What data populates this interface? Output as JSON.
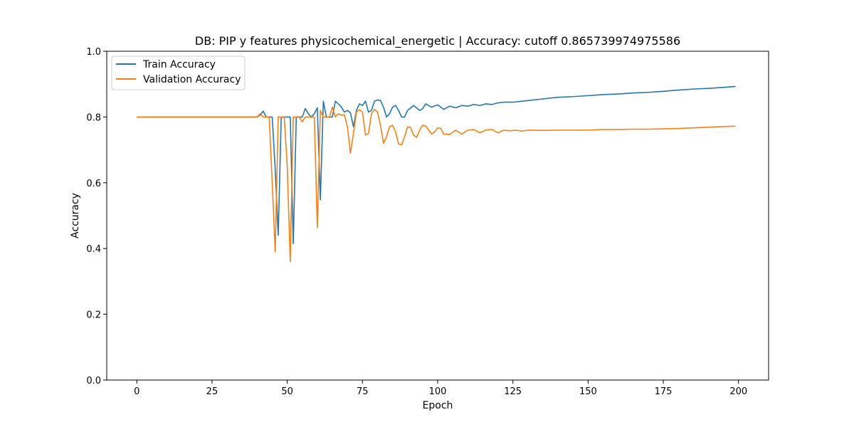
{
  "chart_data": {
    "type": "line",
    "title": "DB: PIP y features physicochemical_energetic | Accuracy: cutoff 0.865739974975586",
    "xlabel": "Epoch",
    "ylabel": "Accuracy",
    "xlim": [
      -10,
      210
    ],
    "ylim": [
      0.0,
      1.0
    ],
    "xticks": [
      0,
      25,
      50,
      75,
      100,
      125,
      150,
      175,
      200
    ],
    "yticks": [
      0.0,
      0.2,
      0.4,
      0.6,
      0.8,
      1.0
    ],
    "grid": false,
    "legend_position": "top-left",
    "series": [
      {
        "name": "Train Accuracy",
        "color": "#1f77b4",
        "x": [
          0,
          38,
          39,
          40,
          41,
          42,
          43,
          44,
          45,
          46,
          47,
          48,
          49,
          50,
          51,
          52,
          53,
          54,
          55,
          56,
          57,
          58,
          59,
          60,
          61,
          62,
          63,
          64,
          65,
          66,
          67,
          68,
          69,
          70,
          71,
          72,
          73,
          74,
          75,
          76,
          77,
          78,
          79,
          80,
          81,
          82,
          83,
          84,
          85,
          86,
          87,
          88,
          89,
          90,
          92,
          94,
          95,
          96,
          98,
          100,
          102,
          104,
          106,
          108,
          110,
          112,
          114,
          116,
          118,
          120,
          122,
          125,
          130,
          135,
          140,
          145,
          150,
          155,
          160,
          165,
          170,
          175,
          180,
          185,
          190,
          195,
          199
        ],
        "y": [
          0.8,
          0.8,
          0.8,
          0.8,
          0.806,
          0.818,
          0.8,
          0.8,
          0.8,
          0.64,
          0.44,
          0.8,
          0.8,
          0.8,
          0.8,
          0.415,
          0.8,
          0.8,
          0.8,
          0.826,
          0.81,
          0.8,
          0.81,
          0.828,
          0.548,
          0.848,
          0.8,
          0.8,
          0.8,
          0.848,
          0.84,
          0.83,
          0.815,
          0.82,
          0.813,
          0.77,
          0.82,
          0.84,
          0.835,
          0.848,
          0.815,
          0.82,
          0.848,
          0.852,
          0.85,
          0.83,
          0.8,
          0.81,
          0.83,
          0.835,
          0.82,
          0.8,
          0.8,
          0.82,
          0.835,
          0.82,
          0.825,
          0.84,
          0.83,
          0.837,
          0.823,
          0.833,
          0.828,
          0.835,
          0.833,
          0.838,
          0.835,
          0.84,
          0.838,
          0.843,
          0.845,
          0.845,
          0.85,
          0.855,
          0.86,
          0.862,
          0.865,
          0.868,
          0.87,
          0.873,
          0.875,
          0.878,
          0.882,
          0.885,
          0.887,
          0.89,
          0.893
        ]
      },
      {
        "name": "Validation Accuracy",
        "color": "#ff7f0e",
        "x": [
          0,
          38,
          39,
          40,
          41,
          42,
          43,
          44,
          45,
          46,
          47,
          48,
          49,
          50,
          51,
          52,
          53,
          54,
          55,
          56,
          57,
          58,
          59,
          60,
          61,
          62,
          63,
          64,
          65,
          66,
          67,
          68,
          69,
          70,
          71,
          72,
          73,
          74,
          75,
          76,
          77,
          78,
          79,
          80,
          81,
          82,
          83,
          84,
          85,
          86,
          87,
          88,
          89,
          90,
          91,
          92,
          93,
          94,
          95,
          96,
          97,
          98,
          99,
          100,
          101,
          102,
          104,
          106,
          108,
          110,
          112,
          114,
          116,
          118,
          120,
          122,
          124,
          126,
          128,
          130,
          135,
          140,
          145,
          150,
          155,
          160,
          165,
          170,
          175,
          180,
          185,
          190,
          195,
          199
        ],
        "y": [
          0.8,
          0.8,
          0.8,
          0.8,
          0.81,
          0.8,
          0.8,
          0.8,
          0.6,
          0.39,
          0.8,
          0.8,
          0.8,
          0.65,
          0.36,
          0.8,
          0.8,
          0.8,
          0.785,
          0.8,
          0.8,
          0.8,
          0.8,
          0.463,
          0.82,
          0.8,
          0.8,
          0.8,
          0.83,
          0.8,
          0.81,
          0.805,
          0.807,
          0.77,
          0.69,
          0.75,
          0.815,
          0.822,
          0.815,
          0.745,
          0.75,
          0.81,
          0.823,
          0.815,
          0.775,
          0.72,
          0.74,
          0.77,
          0.775,
          0.755,
          0.718,
          0.715,
          0.74,
          0.77,
          0.768,
          0.745,
          0.738,
          0.76,
          0.775,
          0.773,
          0.76,
          0.748,
          0.755,
          0.767,
          0.766,
          0.748,
          0.747,
          0.76,
          0.748,
          0.76,
          0.762,
          0.752,
          0.76,
          0.762,
          0.752,
          0.76,
          0.758,
          0.76,
          0.757,
          0.76,
          0.759,
          0.76,
          0.76,
          0.76,
          0.762,
          0.762,
          0.763,
          0.763,
          0.764,
          0.765,
          0.767,
          0.769,
          0.771,
          0.772
        ]
      }
    ]
  }
}
